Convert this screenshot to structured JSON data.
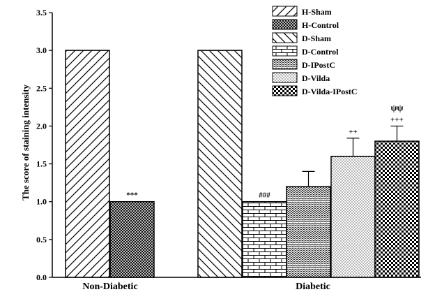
{
  "chart_data": {
    "type": "bar",
    "title": "",
    "xlabel": "",
    "ylabel": "The score of staining intensity",
    "ylim": [
      0,
      3.5
    ],
    "yticks": [
      "0.0",
      "0.5",
      "1.0",
      "1.5",
      "2.0",
      "2.5",
      "3.0",
      "3.5"
    ],
    "groups": [
      "Non-Diabetic",
      "Diabetic"
    ],
    "legend_position": "top-right",
    "series": [
      {
        "name": "H-Sham",
        "group": "Non-Diabetic",
        "value": 3.0,
        "error": 0,
        "pattern": "diag-fwd",
        "annotation": ""
      },
      {
        "name": "H-Control",
        "group": "Non-Diabetic",
        "value": 1.0,
        "error": 0,
        "pattern": "crosshatch",
        "annotation": "***"
      },
      {
        "name": "D-Sham",
        "group": "Diabetic",
        "value": 3.0,
        "error": 0,
        "pattern": "diag-back",
        "annotation": ""
      },
      {
        "name": "D-Control",
        "group": "Diabetic",
        "value": 1.0,
        "error": 0,
        "pattern": "brick",
        "annotation": "###"
      },
      {
        "name": "D-IPostC",
        "group": "Diabetic",
        "value": 1.2,
        "error": 0.2,
        "pattern": "zigzag",
        "annotation": ""
      },
      {
        "name": "D-Vilda",
        "group": "Diabetic",
        "value": 1.6,
        "error": 0.24,
        "pattern": "dots",
        "annotation": "++"
      },
      {
        "name": "D-Vilda-IPostC",
        "group": "Diabetic",
        "value": 1.8,
        "error": 0.2,
        "pattern": "checker",
        "annotation": "+++"
      }
    ],
    "extra_annotations": [
      {
        "series": "D-Vilda-IPostC",
        "text": "ψψ"
      }
    ]
  }
}
